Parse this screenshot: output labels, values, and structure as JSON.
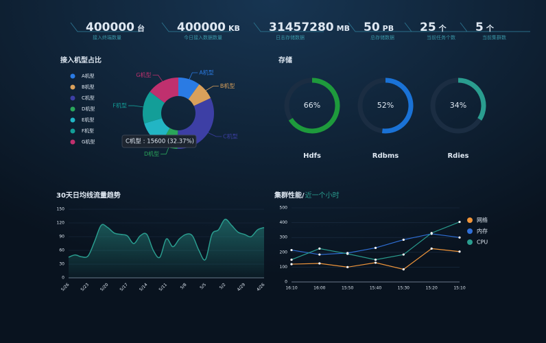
{
  "kpis": [
    {
      "value": 400000,
      "unit": "台",
      "label": "接入终端数量"
    },
    {
      "value": 400000,
      "unit": "KB",
      "label": "今日接入数据数量"
    },
    {
      "value": 31457280,
      "unit": "MB",
      "label": "日志存储数据"
    },
    {
      "value": 50,
      "unit": "PB",
      "label": "总存储数据"
    },
    {
      "value": 25,
      "unit": "个",
      "label": "当前任务个数"
    },
    {
      "value": 5,
      "unit": "个",
      "label": "当前集群数"
    }
  ],
  "chart_data": [
    {
      "type": "pie",
      "title": "接入机型占比",
      "categories": [
        "A机型",
        "B机型",
        "C机型",
        "D机型",
        "E机型",
        "F机型",
        "G机型"
      ],
      "values": [
        4800,
        3900,
        15600,
        3800,
        5800,
        7200,
        7090
      ],
      "colors": [
        "#2a7be4",
        "#d9a05b",
        "#3d3fa5",
        "#2aa55a",
        "#22b5c4",
        "#139e98",
        "#c0306e"
      ],
      "tooltip": "C机型 : 15600 (32.37%)"
    },
    {
      "type": "gauge",
      "title": "存储",
      "categories": [
        "Hdfs",
        "Rdbms",
        "Rdies"
      ],
      "values": [
        66,
        52,
        34
      ],
      "value_labels": [
        "66%",
        "52%",
        "34%"
      ],
      "colors": [
        "#1e9a3c",
        "#1a72d6",
        "#2a9d8f"
      ],
      "ylim": [
        0,
        100
      ]
    },
    {
      "type": "area",
      "title": "30天日均线流量趋势",
      "categories": [
        "5/26",
        null,
        null,
        "5/23",
        null,
        null,
        "5/20",
        null,
        null,
        "5/17",
        null,
        null,
        "5/14",
        null,
        null,
        "5/11",
        null,
        null,
        "5/8",
        null,
        null,
        "5/5",
        null,
        null,
        "5/2",
        null,
        null,
        "4/29",
        null,
        null,
        "4/26"
      ],
      "values": [
        45,
        50,
        46,
        48,
        80,
        115,
        110,
        98,
        95,
        92,
        75,
        92,
        95,
        60,
        45,
        85,
        68,
        85,
        95,
        92,
        60,
        40,
        95,
        105,
        128,
        115,
        100,
        95,
        90,
        105,
        110
      ],
      "color": "#2a9d8f",
      "ylim": [
        0,
        150
      ],
      "yticks": [
        0,
        30,
        60,
        90,
        120,
        150
      ]
    },
    {
      "type": "line",
      "title": "集群性能/",
      "subtitle": "近一个小时",
      "categories": [
        "16:10",
        "16:00",
        "15:50",
        "15:40",
        "15:30",
        "15:20",
        "15:10"
      ],
      "series": [
        {
          "name": "网络",
          "color": "#f0953a",
          "values": [
            120,
            125,
            100,
            130,
            85,
            225,
            205
          ]
        },
        {
          "name": "内存",
          "color": "#2f6fd8",
          "values": [
            215,
            185,
            195,
            230,
            285,
            325,
            300
          ]
        },
        {
          "name": "CPU",
          "color": "#2a9d8f",
          "values": [
            150,
            225,
            190,
            150,
            185,
            330,
            405
          ]
        }
      ],
      "ylim": [
        0,
        500
      ],
      "yticks": [
        0,
        100,
        200,
        300,
        400,
        500
      ],
      "legend": "right"
    }
  ]
}
